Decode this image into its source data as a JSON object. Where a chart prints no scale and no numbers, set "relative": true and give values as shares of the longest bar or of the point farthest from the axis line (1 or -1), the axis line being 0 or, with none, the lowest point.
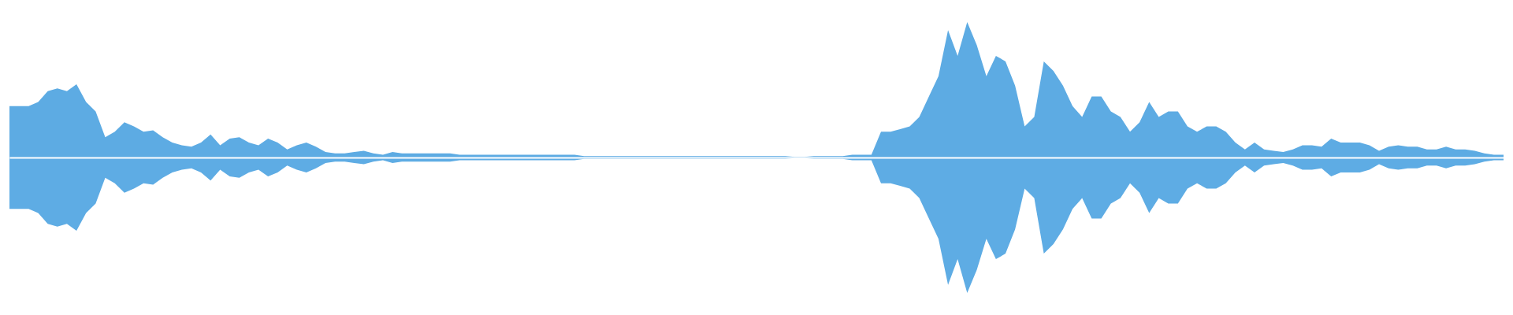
{
  "chart_data": {
    "type": "area",
    "relative": true,
    "categories": [
      null,
      null,
      null,
      null,
      null,
      null,
      null,
      null,
      null,
      null,
      null,
      null,
      null,
      null,
      null,
      null,
      null,
      null,
      null,
      null,
      null,
      null,
      null,
      null,
      null,
      null,
      null,
      null,
      null,
      null,
      null,
      null,
      null,
      null,
      null,
      null,
      null,
      null,
      null,
      null,
      null,
      null,
      null,
      null,
      null,
      null,
      null,
      null,
      null,
      null,
      null,
      null,
      null,
      null,
      null,
      null,
      null,
      null,
      null,
      null,
      null,
      null,
      null,
      null,
      null,
      null,
      null,
      null,
      null,
      null,
      null,
      null,
      null,
      null,
      null,
      null,
      null,
      null,
      null,
      null,
      null,
      null,
      null,
      null,
      null,
      null,
      null,
      null,
      null,
      null,
      null,
      null,
      null,
      null,
      null,
      null,
      null,
      null,
      null,
      null,
      null,
      null,
      null,
      null,
      null,
      null,
      null,
      null,
      null,
      null,
      null,
      null,
      null,
      null,
      null,
      null,
      null,
      null,
      null,
      null,
      null,
      null,
      null,
      null,
      null,
      null,
      null,
      null,
      null,
      null,
      null,
      null,
      null,
      null,
      null,
      null,
      null,
      null,
      null,
      null,
      null,
      null,
      null,
      null,
      null,
      null,
      null,
      null,
      null,
      null,
      null,
      null,
      null,
      null,
      null,
      null,
      null
    ],
    "series": [
      {
        "color": "#5dabe3",
        "values": [
          0.38,
          0.38,
          0.38,
          0.41,
          0.49,
          0.51,
          0.49,
          0.54,
          0.41,
          0.34,
          0.15,
          0.19,
          0.26,
          0.23,
          0.19,
          0.2,
          0.15,
          0.11,
          0.09,
          0.08,
          0.11,
          0.17,
          0.09,
          0.14,
          0.15,
          0.11,
          0.09,
          0.14,
          0.11,
          0.06,
          0.09,
          0.11,
          0.08,
          0.04,
          0.03,
          0.03,
          0.04,
          0.05,
          0.03,
          0.02,
          0.04,
          0.03,
          0.03,
          0.03,
          0.03,
          0.03,
          0.03,
          0.02,
          0.02,
          0.02,
          0.02,
          0.02,
          0.02,
          0.02,
          0.02,
          0.02,
          0.02,
          0.02,
          0.02,
          0.02,
          0.01,
          0.01,
          0.01,
          0.01,
          0.01,
          0.01,
          0.01,
          0.01,
          0.01,
          0.01,
          0.01,
          0.01,
          0.01,
          0.01,
          0.01,
          0.01,
          0.01,
          0.01,
          0.01,
          0.01,
          0.01,
          0.01,
          0.005,
          0.005,
          0.01,
          0.01,
          0.01,
          0.01,
          0.02,
          0.02,
          0.02,
          0.19,
          0.19,
          0.21,
          0.23,
          0.3,
          0.45,
          0.6,
          0.94,
          0.75,
          1,
          0.83,
          0.6,
          0.75,
          0.71,
          0.53,
          0.23,
          0.3,
          0.71,
          0.64,
          0.53,
          0.38,
          0.3,
          0.45,
          0.45,
          0.34,
          0.3,
          0.19,
          0.26,
          0.41,
          0.3,
          0.34,
          0.34,
          0.23,
          0.19,
          0.23,
          0.23,
          0.19,
          0.11,
          0.06,
          0.11,
          0.06,
          0.05,
          0.04,
          0.06,
          0.09,
          0.09,
          0.08,
          0.14,
          0.11,
          0.11,
          0.11,
          0.09,
          0.05,
          0.08,
          0.09,
          0.08,
          0.08,
          0.06,
          0.06,
          0.08,
          0.06,
          0.06,
          0.05,
          0.03,
          0.02,
          0.02
        ]
      },
      {
        "color": "#5eace4",
        "values": [
          -0.38,
          -0.38,
          -0.38,
          -0.41,
          -0.49,
          -0.51,
          -0.49,
          -0.54,
          -0.41,
          -0.34,
          -0.15,
          -0.19,
          -0.26,
          -0.23,
          -0.19,
          -0.2,
          -0.15,
          -0.11,
          -0.09,
          -0.08,
          -0.11,
          -0.17,
          -0.09,
          -0.14,
          -0.15,
          -0.11,
          -0.09,
          -0.14,
          -0.11,
          -0.06,
          -0.09,
          -0.11,
          -0.08,
          -0.04,
          -0.03,
          -0.03,
          -0.04,
          -0.05,
          -0.03,
          -0.02,
          -0.04,
          -0.03,
          -0.03,
          -0.03,
          -0.03,
          -0.03,
          -0.03,
          -0.02,
          -0.02,
          -0.02,
          -0.02,
          -0.02,
          -0.02,
          -0.02,
          -0.02,
          -0.02,
          -0.02,
          -0.02,
          -0.02,
          -0.02,
          -0.01,
          -0.01,
          -0.01,
          -0.01,
          -0.01,
          -0.01,
          -0.01,
          -0.01,
          -0.01,
          -0.01,
          -0.01,
          -0.01,
          -0.01,
          -0.01,
          -0.01,
          -0.01,
          -0.01,
          -0.01,
          -0.01,
          -0.01,
          -0.01,
          -0.01,
          -0.005,
          -0.005,
          -0.01,
          -0.01,
          -0.01,
          -0.01,
          -0.02,
          -0.02,
          -0.02,
          -0.19,
          -0.19,
          -0.21,
          -0.23,
          -0.3,
          -0.45,
          -0.6,
          -0.94,
          -0.75,
          -1,
          -0.83,
          -0.6,
          -0.75,
          -0.71,
          -0.53,
          -0.23,
          -0.3,
          -0.71,
          -0.64,
          -0.53,
          -0.38,
          -0.3,
          -0.45,
          -0.45,
          -0.34,
          -0.3,
          -0.19,
          -0.26,
          -0.41,
          -0.3,
          -0.34,
          -0.34,
          -0.23,
          -0.19,
          -0.23,
          -0.23,
          -0.19,
          -0.11,
          -0.06,
          -0.11,
          -0.06,
          -0.05,
          -0.04,
          -0.06,
          -0.09,
          -0.09,
          -0.08,
          -0.14,
          -0.11,
          -0.11,
          -0.11,
          -0.09,
          -0.05,
          -0.08,
          -0.09,
          -0.08,
          -0.08,
          -0.06,
          -0.06,
          -0.08,
          -0.06,
          -0.06,
          -0.05,
          -0.03,
          -0.02,
          -0.02
        ]
      }
    ]
  }
}
